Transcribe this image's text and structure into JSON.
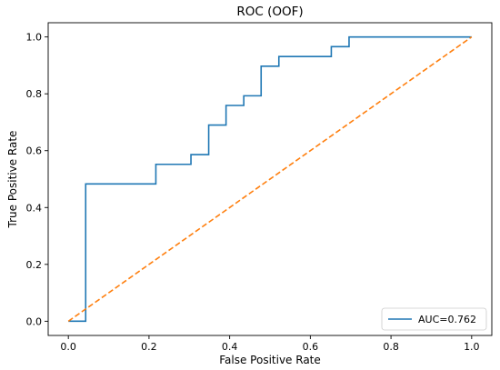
{
  "chart_data": {
    "type": "line",
    "title": "ROC (OOF)",
    "xlabel": "False Positive Rate",
    "ylabel": "True Positive Rate",
    "xlim": [
      -0.05,
      1.05
    ],
    "ylim": [
      -0.05,
      1.05
    ],
    "xticks": [
      "0.0",
      "0.2",
      "0.4",
      "0.6",
      "0.8",
      "1.0"
    ],
    "yticks": [
      "0.0",
      "0.2",
      "0.4",
      "0.6",
      "0.8",
      "1.0"
    ],
    "grid": false,
    "legend_position": "lower-right",
    "series": [
      {
        "name": "AUC=0.762",
        "color": "#1f77b4",
        "style": "solid",
        "x": [
          0.0,
          0.043,
          0.043,
          0.217,
          0.217,
          0.304,
          0.304,
          0.348,
          0.348,
          0.391,
          0.391,
          0.435,
          0.435,
          0.478,
          0.478,
          0.522,
          0.522,
          0.652,
          0.652,
          0.696,
          0.696,
          1.0
        ],
        "y": [
          0.0,
          0.0,
          0.483,
          0.483,
          0.552,
          0.552,
          0.586,
          0.586,
          0.69,
          0.69,
          0.759,
          0.759,
          0.793,
          0.793,
          0.897,
          0.897,
          0.931,
          0.931,
          0.966,
          0.966,
          1.0,
          1.0
        ]
      },
      {
        "color": "#ff7f0e",
        "style": "dashed",
        "x": [
          0.0,
          1.0
        ],
        "y": [
          0.0,
          1.0
        ]
      }
    ]
  }
}
